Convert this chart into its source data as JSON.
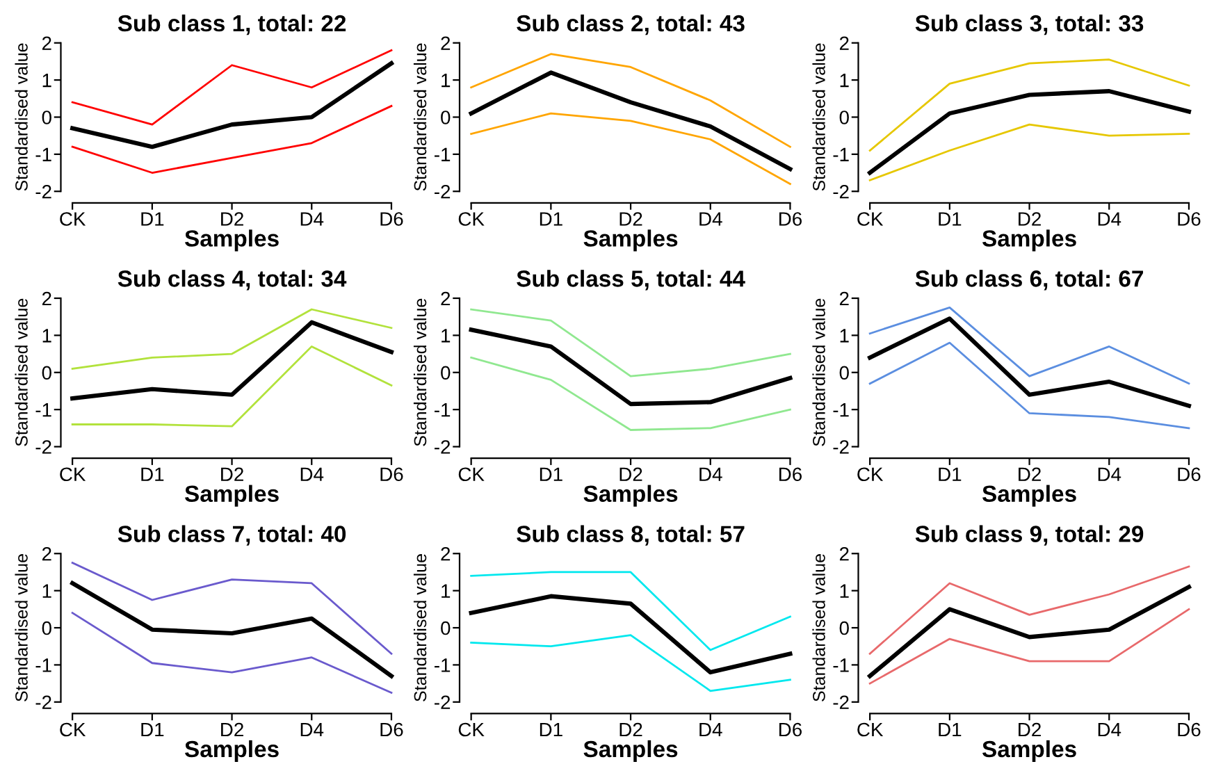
{
  "chart_data": [
    {
      "type": "line",
      "title": "Sub class 1, total: 22",
      "xlabel": "Samples",
      "ylabel": "Standardised value",
      "categories": [
        "CK",
        "D1",
        "D2",
        "D4",
        "D6"
      ],
      "ylim": [
        -2,
        2
      ],
      "yticks": [
        -2,
        -1,
        0,
        1,
        2
      ],
      "grid": false,
      "series": [
        {
          "color": "#ff0000",
          "values": [
            0.4,
            -0.2,
            1.4,
            0.8,
            1.8
          ]
        },
        {
          "color": "#ff0000",
          "values": [
            -0.8,
            -1.5,
            -1.1,
            -0.7,
            0.3
          ]
        },
        {
          "color": "#000000",
          "values": [
            -0.3,
            -0.8,
            -0.2,
            0.0,
            1.45
          ]
        }
      ]
    },
    {
      "type": "line",
      "title": "Sub class 2, total: 43",
      "xlabel": "Samples",
      "ylabel": "Standardised value",
      "categories": [
        "CK",
        "D1",
        "D2",
        "D4",
        "D6"
      ],
      "ylim": [
        -2,
        2
      ],
      "yticks": [
        -2,
        -1,
        0,
        1,
        2
      ],
      "grid": false,
      "series": [
        {
          "color": "#ffa500",
          "values": [
            0.8,
            1.7,
            1.35,
            0.45,
            -0.8
          ]
        },
        {
          "color": "#ffa500",
          "values": [
            -0.45,
            0.1,
            -0.1,
            -0.6,
            -1.8
          ]
        },
        {
          "color": "#000000",
          "values": [
            0.1,
            1.2,
            0.4,
            -0.25,
            -1.4
          ]
        }
      ]
    },
    {
      "type": "line",
      "title": "Sub class 3, total: 33",
      "xlabel": "Samples",
      "ylabel": "Standardised value",
      "categories": [
        "CK",
        "D1",
        "D2",
        "D4",
        "D6"
      ],
      "ylim": [
        -2,
        2
      ],
      "yticks": [
        -2,
        -1,
        0,
        1,
        2
      ],
      "grid": false,
      "series": [
        {
          "color": "#e6c700",
          "values": [
            -0.9,
            0.9,
            1.45,
            1.55,
            0.85
          ]
        },
        {
          "color": "#e6c700",
          "values": [
            -1.7,
            -0.9,
            -0.2,
            -0.5,
            -0.45
          ]
        },
        {
          "color": "#000000",
          "values": [
            -1.5,
            0.1,
            0.6,
            0.7,
            0.15
          ]
        }
      ]
    },
    {
      "type": "line",
      "title": "Sub class 4, total: 34",
      "xlabel": "Samples",
      "ylabel": "Standardised value",
      "categories": [
        "CK",
        "D1",
        "D2",
        "D4",
        "D6"
      ],
      "ylim": [
        -2,
        2
      ],
      "yticks": [
        -2,
        -1,
        0,
        1,
        2
      ],
      "grid": false,
      "series": [
        {
          "color": "#b2e23c",
          "values": [
            0.1,
            0.4,
            0.5,
            1.7,
            1.2
          ]
        },
        {
          "color": "#b2e23c",
          "values": [
            -1.4,
            -1.4,
            -1.45,
            0.7,
            -0.35
          ]
        },
        {
          "color": "#000000",
          "values": [
            -0.7,
            -0.45,
            -0.6,
            1.35,
            0.55
          ]
        }
      ]
    },
    {
      "type": "line",
      "title": "Sub class 5, total: 44",
      "xlabel": "Samples",
      "ylabel": "Standardised value",
      "categories": [
        "CK",
        "D1",
        "D2",
        "D4",
        "D6"
      ],
      "ylim": [
        -2,
        2
      ],
      "yticks": [
        -2,
        -1,
        0,
        1,
        2
      ],
      "grid": false,
      "series": [
        {
          "color": "#90e890",
          "values": [
            1.7,
            1.4,
            -0.1,
            0.1,
            0.5
          ]
        },
        {
          "color": "#90e890",
          "values": [
            0.4,
            -0.2,
            -1.55,
            -1.5,
            -1.0
          ]
        },
        {
          "color": "#000000",
          "values": [
            1.15,
            0.7,
            -0.85,
            -0.8,
            -0.15
          ]
        }
      ]
    },
    {
      "type": "line",
      "title": "Sub class 6, total: 67",
      "xlabel": "Samples",
      "ylabel": "Standardised value",
      "categories": [
        "CK",
        "D1",
        "D2",
        "D4",
        "D6"
      ],
      "ylim": [
        -2,
        2
      ],
      "yticks": [
        -2,
        -1,
        0,
        1,
        2
      ],
      "grid": false,
      "series": [
        {
          "color": "#5b8ee0",
          "values": [
            1.05,
            1.75,
            -0.1,
            0.7,
            -0.3
          ]
        },
        {
          "color": "#5b8ee0",
          "values": [
            -0.3,
            0.8,
            -1.1,
            -1.2,
            -1.5
          ]
        },
        {
          "color": "#000000",
          "values": [
            0.4,
            1.45,
            -0.6,
            -0.25,
            -0.9
          ]
        }
      ]
    },
    {
      "type": "line",
      "title": "Sub class 7, total: 40",
      "xlabel": "Samples",
      "ylabel": "Standardised value",
      "categories": [
        "CK",
        "D1",
        "D2",
        "D4",
        "D6"
      ],
      "ylim": [
        -2,
        2
      ],
      "yticks": [
        -2,
        -1,
        0,
        1,
        2
      ],
      "grid": false,
      "series": [
        {
          "color": "#6a5acd",
          "values": [
            1.75,
            0.75,
            1.3,
            1.2,
            -0.7
          ]
        },
        {
          "color": "#6a5acd",
          "values": [
            0.4,
            -0.95,
            -1.2,
            -0.8,
            -1.75
          ]
        },
        {
          "color": "#000000",
          "values": [
            1.2,
            -0.05,
            -0.15,
            0.25,
            -1.3
          ]
        }
      ]
    },
    {
      "type": "line",
      "title": "Sub class 8, total: 57",
      "xlabel": "Samples",
      "ylabel": "Standardised value",
      "categories": [
        "CK",
        "D1",
        "D2",
        "D4",
        "D6"
      ],
      "ylim": [
        -2,
        2
      ],
      "yticks": [
        -2,
        -1,
        0,
        1,
        2
      ],
      "grid": false,
      "series": [
        {
          "color": "#00e8ee",
          "values": [
            1.4,
            1.5,
            1.5,
            -0.6,
            0.3
          ]
        },
        {
          "color": "#00e8ee",
          "values": [
            -0.4,
            -0.5,
            -0.2,
            -1.7,
            -1.4
          ]
        },
        {
          "color": "#000000",
          "values": [
            0.4,
            0.85,
            0.65,
            -1.2,
            -0.7
          ]
        }
      ]
    },
    {
      "type": "line",
      "title": "Sub class 9, total: 29",
      "xlabel": "Samples",
      "ylabel": "Standardised value",
      "categories": [
        "CK",
        "D1",
        "D2",
        "D4",
        "D6"
      ],
      "ylim": [
        -2,
        2
      ],
      "yticks": [
        -2,
        -1,
        0,
        1,
        2
      ],
      "grid": false,
      "series": [
        {
          "color": "#e8696b",
          "values": [
            -0.7,
            1.2,
            0.35,
            0.9,
            1.65
          ]
        },
        {
          "color": "#e8696b",
          "values": [
            -1.5,
            -0.3,
            -0.9,
            -0.9,
            0.5
          ]
        },
        {
          "color": "#000000",
          "values": [
            -1.3,
            0.5,
            -0.25,
            -0.05,
            1.1
          ]
        }
      ]
    }
  ]
}
